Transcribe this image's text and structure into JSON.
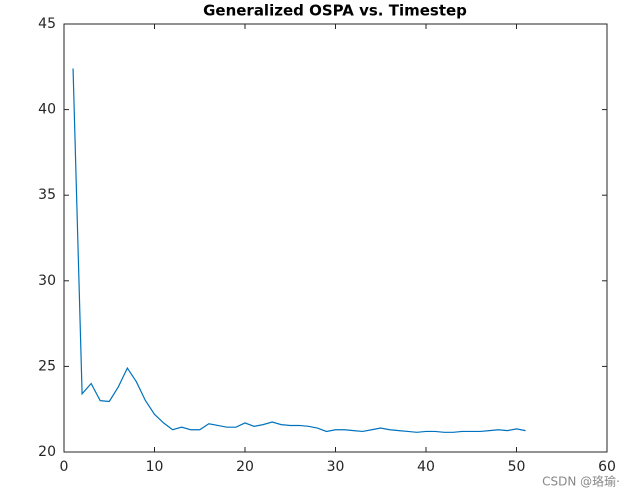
{
  "chart_data": {
    "type": "line",
    "title": "Generalized OSPA vs. Timestep",
    "x": [
      1,
      2,
      3,
      4,
      5,
      6,
      7,
      8,
      9,
      10,
      11,
      12,
      13,
      14,
      15,
      16,
      17,
      18,
      19,
      20,
      21,
      22,
      23,
      24,
      25,
      26,
      27,
      28,
      29,
      30,
      31,
      32,
      33,
      34,
      35,
      36,
      37,
      38,
      39,
      40,
      41,
      42,
      43,
      44,
      45,
      46,
      47,
      48,
      49,
      50,
      51
    ],
    "series": [
      {
        "color": "#0072bd",
        "values": [
          42.4,
          23.4,
          24.0,
          23.0,
          22.95,
          23.8,
          24.9,
          24.1,
          23.0,
          22.2,
          21.7,
          21.3,
          21.45,
          21.3,
          21.3,
          21.65,
          21.55,
          21.45,
          21.45,
          21.7,
          21.5,
          21.6,
          21.75,
          21.6,
          21.55,
          21.55,
          21.5,
          21.4,
          21.2,
          21.3,
          21.3,
          21.25,
          21.2,
          21.3,
          21.4,
          21.3,
          21.25,
          21.2,
          21.15,
          21.2,
          21.2,
          21.15,
          21.15,
          21.2,
          21.2,
          21.2,
          21.25,
          21.3,
          21.25,
          21.35,
          21.25
        ]
      }
    ],
    "xlim": [
      0,
      60
    ],
    "xticks": [
      0,
      10,
      20,
      30,
      40,
      50,
      60
    ],
    "ylim": [
      20,
      45
    ],
    "yticks": [
      20,
      25,
      30,
      35,
      40,
      45
    ],
    "watermark": "CSDN @珞瑜·"
  }
}
